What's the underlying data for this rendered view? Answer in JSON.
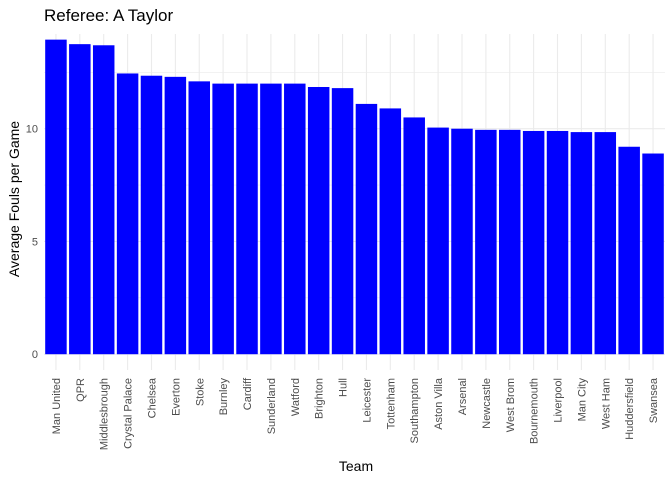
{
  "chart_data": {
    "type": "bar",
    "title": "Referee: A Taylor",
    "xlabel": "Team",
    "ylabel": "Average Fouls per Game",
    "categories": [
      "Man United",
      "QPR",
      "Middlesbrough",
      "Crystal Palace",
      "Chelsea",
      "Everton",
      "Stoke",
      "Burnley",
      "Cardiff",
      "Sunderland",
      "Watford",
      "Brighton",
      "Hull",
      "Leicester",
      "Tottenham",
      "Southampton",
      "Aston Villa",
      "Arsenal",
      "Newcastle",
      "West Brom",
      "Bournemouth",
      "Liverpool",
      "Man City",
      "West Ham",
      "Huddersfield",
      "Swansea"
    ],
    "values": [
      13.95,
      13.75,
      13.7,
      12.45,
      12.35,
      12.3,
      12.1,
      12.0,
      12.0,
      12.0,
      12.0,
      11.85,
      11.8,
      11.1,
      10.9,
      10.5,
      10.05,
      10.0,
      9.95,
      9.95,
      9.9,
      9.9,
      9.85,
      9.85,
      9.2,
      8.9
    ],
    "yticks": [
      0,
      5,
      10
    ],
    "ylim": [
      -0.7,
      14.2
    ],
    "grid": true,
    "bar_color": "#0000ff",
    "grid_color": "#ebebeb",
    "text_color": "#4d4d4d"
  }
}
